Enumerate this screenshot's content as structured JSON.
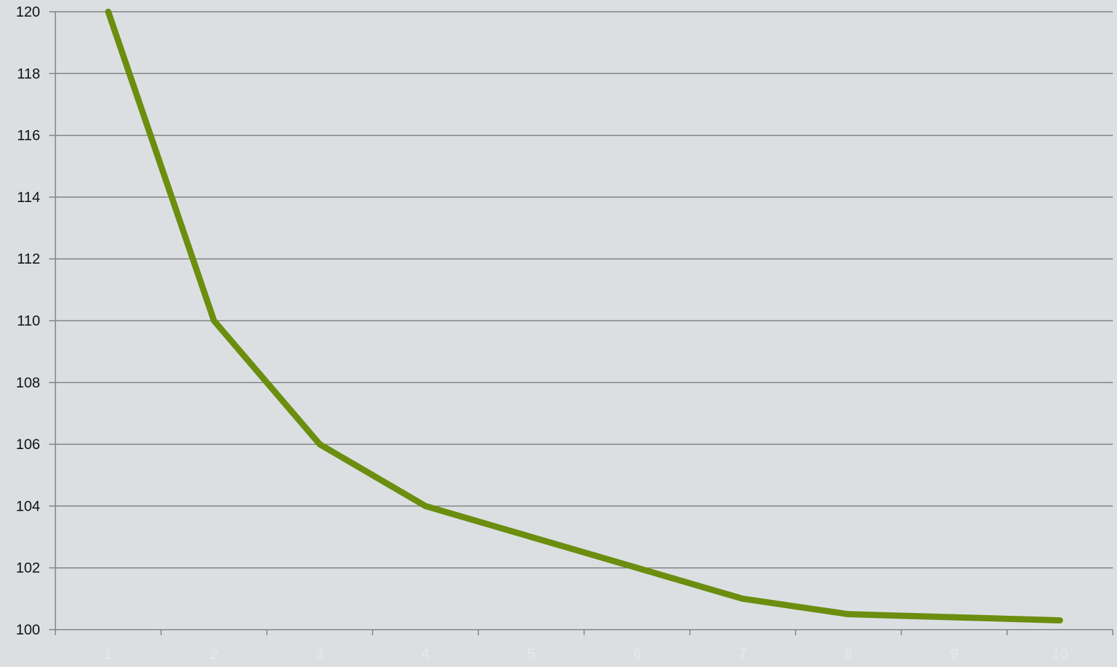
{
  "chart_data": {
    "type": "line",
    "title": "",
    "xlabel": "",
    "ylabel": "",
    "categories": [
      "1",
      "2",
      "3",
      "4",
      "5",
      "6",
      "7",
      "8",
      "9",
      "10"
    ],
    "series": [
      {
        "values": [
          120,
          110,
          106,
          104,
          103,
          102,
          101,
          100.5,
          100.4,
          100.3
        ],
        "color": "#6b8e0f"
      }
    ],
    "ylim": [
      100,
      120
    ],
    "yticks": [
      100,
      102,
      104,
      106,
      108,
      110,
      112,
      114,
      116,
      118,
      120
    ],
    "grid": true,
    "legend": "none",
    "colors": {
      "background": "#dcdfe2",
      "gridline": "#7f8182",
      "axis": "#7f8182",
      "y_tick_label": "#111111",
      "x_tick_label": "#e6e8ea"
    }
  }
}
